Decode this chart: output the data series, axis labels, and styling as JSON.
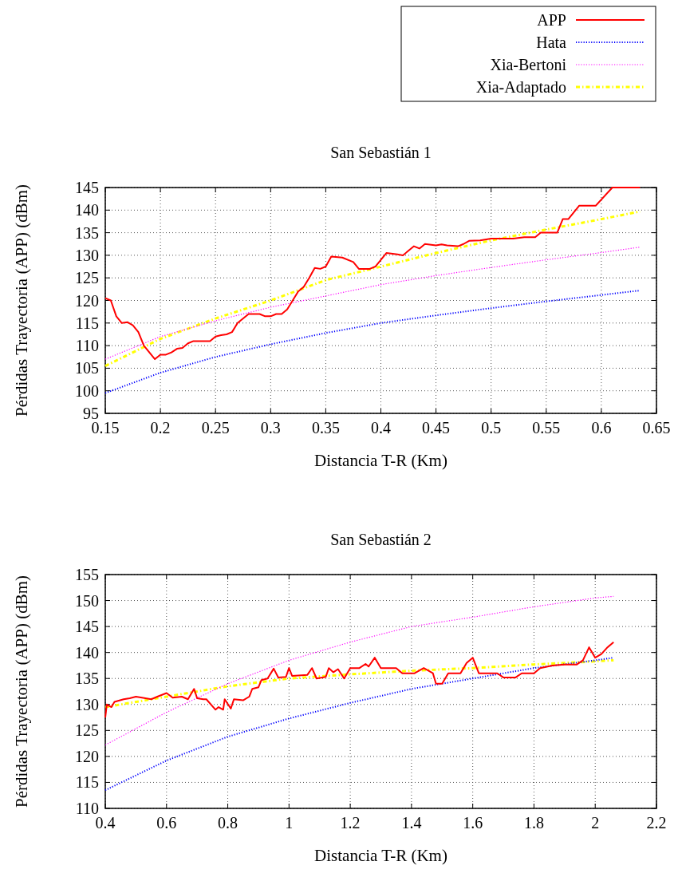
{
  "chart_data": [
    {
      "type": "line",
      "title": "San Sebastián 1",
      "xlabel": "Distancia T-R (Km)",
      "ylabel": "Pérdidas Trayectoria (APP) (dBm)",
      "xlim": [
        0.15,
        0.65
      ],
      "ylim": [
        95,
        145
      ],
      "xticks": [
        0.15,
        0.2,
        0.25,
        0.3,
        0.35,
        0.4,
        0.45,
        0.5,
        0.55,
        0.6,
        0.65
      ],
      "yticks": [
        95,
        100,
        105,
        110,
        115,
        120,
        125,
        130,
        135,
        140,
        145
      ],
      "grid": true,
      "legend": "top right",
      "series": [
        {
          "name": "APP",
          "color": "#ff0000",
          "line_style": "solid",
          "x": [
            0.15,
            0.155,
            0.16,
            0.165,
            0.17,
            0.175,
            0.18,
            0.185,
            0.19,
            0.195,
            0.2,
            0.205,
            0.21,
            0.215,
            0.22,
            0.225,
            0.23,
            0.245,
            0.25,
            0.255,
            0.26,
            0.265,
            0.27,
            0.28,
            0.29,
            0.295,
            0.3,
            0.305,
            0.31,
            0.315,
            0.32,
            0.325,
            0.33,
            0.335,
            0.34,
            0.345,
            0.35,
            0.355,
            0.365,
            0.375,
            0.38,
            0.39,
            0.395,
            0.4,
            0.405,
            0.415,
            0.42,
            0.43,
            0.435,
            0.44,
            0.45,
            0.455,
            0.46,
            0.47,
            0.475,
            0.48,
            0.49,
            0.5,
            0.52,
            0.53,
            0.54,
            0.545,
            0.56,
            0.565,
            0.57,
            0.58,
            0.595,
            0.61,
            0.635
          ],
          "values": [
            120.5,
            120,
            116.5,
            115,
            115.2,
            114.5,
            113,
            110,
            108.5,
            107,
            108,
            108,
            108.5,
            109.3,
            109.5,
            110.5,
            111,
            111,
            112,
            112.3,
            112.5,
            113,
            115,
            117,
            117,
            116.5,
            116.5,
            117,
            117,
            118,
            120,
            122,
            123,
            125,
            127.2,
            127,
            127.5,
            129.7,
            129.5,
            128.5,
            127,
            127,
            127.5,
            129,
            130.5,
            130.2,
            130,
            132,
            131.5,
            132.5,
            132.2,
            132.4,
            132.2,
            132,
            132.5,
            133.2,
            133.3,
            133.7,
            133.7,
            134,
            134,
            135,
            135,
            138,
            138,
            141,
            141,
            145,
            145
          ]
        },
        {
          "name": "Hata",
          "color": "#0000ff",
          "line_style": "dotted",
          "x": [
            0.15,
            0.2,
            0.25,
            0.3,
            0.35,
            0.4,
            0.45,
            0.5,
            0.55,
            0.6,
            0.635
          ],
          "values": [
            99.5,
            104,
            107.5,
            110.3,
            112.8,
            115,
            116.7,
            118.3,
            119.8,
            121.2,
            122.2
          ]
        },
        {
          "name": "Xia-Bertoni",
          "color": "#ff00ff",
          "line_style": "dotted",
          "x": [
            0.15,
            0.2,
            0.25,
            0.3,
            0.35,
            0.4,
            0.45,
            0.5,
            0.55,
            0.6,
            0.635
          ],
          "values": [
            107,
            112,
            115.5,
            118.5,
            121,
            123.5,
            125.5,
            127.3,
            129,
            130.6,
            131.8
          ]
        },
        {
          "name": "Xia-Adaptado",
          "color": "#ffff00",
          "line_style": "dashed",
          "x": [
            0.15,
            0.2,
            0.25,
            0.3,
            0.35,
            0.4,
            0.45,
            0.5,
            0.55,
            0.6,
            0.635
          ],
          "values": [
            105.5,
            111.5,
            116,
            120,
            124.5,
            127.5,
            130.5,
            133.3,
            135.7,
            138,
            139.7
          ]
        }
      ]
    },
    {
      "type": "line",
      "title": "San Sebastián 2",
      "xlabel": "Distancia T-R (Km)",
      "ylabel": "Pérdidas Trayectoria (APP) (dBm)",
      "xlim": [
        0.4,
        2.2
      ],
      "ylim": [
        110,
        155
      ],
      "xticks": [
        0.4,
        0.6,
        0.8,
        1,
        1.2,
        1.4,
        1.6,
        1.8,
        2,
        2.2
      ],
      "yticks": [
        110,
        115,
        120,
        125,
        130,
        135,
        140,
        145,
        150,
        155
      ],
      "grid": true,
      "series": [
        {
          "color": "#ff0000",
          "line_style": "solid",
          "x": [
            0.4,
            0.405,
            0.42,
            0.43,
            0.46,
            0.48,
            0.5,
            0.52,
            0.55,
            0.57,
            0.6,
            0.62,
            0.65,
            0.67,
            0.69,
            0.7,
            0.72,
            0.73,
            0.76,
            0.77,
            0.785,
            0.79,
            0.81,
            0.82,
            0.85,
            0.87,
            0.88,
            0.9,
            0.91,
            0.93,
            0.95,
            0.965,
            0.99,
            1.0,
            1.01,
            1.06,
            1.075,
            1.09,
            1.12,
            1.13,
            1.145,
            1.16,
            1.18,
            1.2,
            1.23,
            1.25,
            1.26,
            1.28,
            1.3,
            1.35,
            1.37,
            1.41,
            1.44,
            1.47,
            1.48,
            1.5,
            1.52,
            1.56,
            1.58,
            1.6,
            1.62,
            1.68,
            1.7,
            1.74,
            1.76,
            1.8,
            1.82,
            1.86,
            1.9,
            1.94,
            1.96,
            1.98,
            2.0,
            2.02,
            2.04,
            2.06
          ],
          "values": [
            127.5,
            130,
            129.5,
            130.5,
            131,
            131.2,
            131.5,
            131.3,
            131,
            131.5,
            132.2,
            131.3,
            131.5,
            131,
            133,
            131.2,
            131,
            131,
            129,
            129.5,
            129,
            131,
            129.2,
            131,
            130.8,
            131.5,
            133,
            133.3,
            134.7,
            135,
            136.9,
            135.2,
            135.3,
            137,
            135.5,
            135.7,
            137,
            135,
            135.3,
            137,
            136.2,
            136.8,
            135,
            137,
            137,
            137.8,
            137.3,
            139,
            137,
            137,
            136,
            136,
            137,
            136,
            134,
            134,
            136,
            136,
            138,
            139,
            136,
            136,
            135.2,
            135.2,
            136,
            136,
            137,
            137.5,
            137.7,
            137.7,
            138.5,
            141,
            139,
            139.7,
            141,
            142
          ]
        },
        {
          "color": "#0000ff",
          "line_style": "dotted",
          "x": [
            0.4,
            0.6,
            0.8,
            1.0,
            1.2,
            1.4,
            1.6,
            1.8,
            2.0,
            2.06
          ],
          "values": [
            113.5,
            119.2,
            123.8,
            127.3,
            130.3,
            133,
            135,
            137,
            138.5,
            139
          ]
        },
        {
          "color": "#ff00ff",
          "line_style": "dotted",
          "x": [
            0.4,
            0.6,
            0.8,
            1.0,
            1.2,
            1.4,
            1.6,
            1.8,
            2.0,
            2.06
          ],
          "values": [
            122.2,
            128.5,
            134,
            138.5,
            142,
            145,
            146.8,
            148.8,
            150.5,
            150.8
          ]
        },
        {
          "color": "#ffff00",
          "line_style": "dashed",
          "x": [
            0.4,
            0.6,
            0.8,
            1.0,
            1.2,
            1.4,
            1.6,
            1.8,
            2.0,
            2.06
          ],
          "values": [
            129.5,
            131.5,
            133.5,
            135,
            135.8,
            136.5,
            137,
            137.7,
            138.3,
            138.5
          ]
        }
      ]
    }
  ]
}
